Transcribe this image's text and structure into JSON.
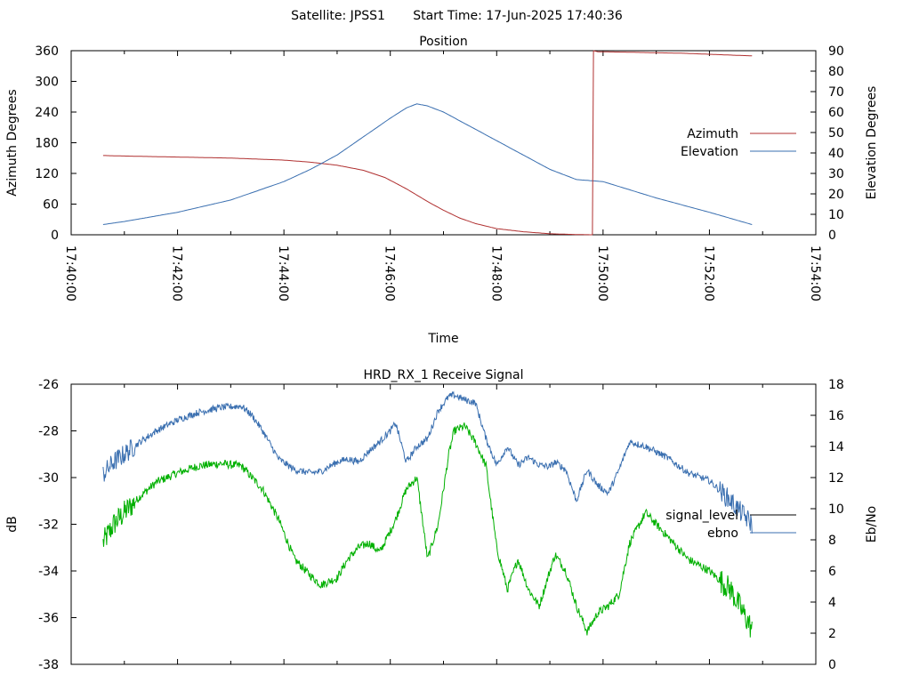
{
  "header": {
    "satellite_text": "Satellite: JPSS1",
    "start_time_text": "Start Time: 17-Jun-2025 17:40:36"
  },
  "chart_data": [
    {
      "type": "line",
      "title": "Position",
      "xlabel": "Time",
      "ylabel_left": "Azimuth Degrees",
      "ylabel_right": "Elevation Degrees",
      "x_ticks": [
        "17:40:00",
        "17:42:00",
        "17:44:00",
        "17:46:00",
        "17:48:00",
        "17:50:00",
        "17:52:00",
        "17:54:00"
      ],
      "x_range_minutes": [
        0,
        14
      ],
      "y_left_ticks": [
        "0",
        "60",
        "120",
        "180",
        "240",
        "300",
        "360"
      ],
      "y_left_range": [
        0,
        360
      ],
      "y_right_ticks": [
        "0",
        "10",
        "20",
        "30",
        "40",
        "50",
        "60",
        "70",
        "80",
        "90"
      ],
      "y_right_range": [
        0,
        90
      ],
      "legend_position": "right",
      "grid": false,
      "colors": {
        "azimuth": "#b03030",
        "elevation": "#3a6fb0"
      },
      "series": [
        {
          "name": "Azimuth",
          "axis": "left",
          "x_minutes": [
            0.6,
            1,
            2,
            3,
            4,
            4.5,
            5,
            5.5,
            5.9,
            6.3,
            6.7,
            7,
            7.3,
            7.6,
            8,
            8.5,
            9,
            9.5,
            9.8
          ],
          "y": [
            155,
            154,
            152,
            150,
            146,
            142,
            136,
            126,
            112,
            90,
            65,
            48,
            33,
            22,
            12,
            6,
            2,
            0.5,
            0
          ]
        },
        {
          "name": "Azimuth",
          "axis": "left",
          "x_minutes": [
            9.82,
            9.9,
            10.5,
            11,
            11.5,
            12,
            12.5,
            12.8
          ],
          "y": [
            360,
            358,
            357,
            356,
            355,
            353,
            351,
            350
          ]
        },
        {
          "name": "Elevation",
          "axis": "right",
          "x_minutes": [
            0.6,
            1,
            2,
            3,
            4,
            4.5,
            5,
            5.5,
            6,
            6.3,
            6.5,
            6.7,
            7,
            7.5,
            8,
            8.5,
            9,
            9.5,
            10,
            10.5,
            11,
            12,
            12.8
          ],
          "y": [
            5,
            6.5,
            11,
            17,
            26,
            32,
            39,
            48,
            57,
            62,
            64,
            63,
            60,
            53,
            46,
            39,
            32,
            27,
            26,
            22,
            18,
            11,
            5
          ]
        }
      ]
    },
    {
      "type": "line",
      "title": "HRD_RX_1 Receive Signal",
      "ylabel_left": "dB",
      "ylabel_right": "Eb/No",
      "x_range_minutes": [
        0,
        14
      ],
      "y_left_ticks": [
        "-26",
        "-28",
        "-30",
        "-32",
        "-34",
        "-36",
        "-38"
      ],
      "y_left_range": [
        -38,
        -26
      ],
      "y_right_ticks": [
        "0",
        "2",
        "4",
        "6",
        "8",
        "10",
        "12",
        "14",
        "16",
        "18"
      ],
      "y_right_range": [
        0,
        18
      ],
      "legend_position": "right",
      "grid": false,
      "colors": {
        "signal_level": "#00b000",
        "ebno": "#3a6fb0",
        "legend_signal_level": "#000000"
      },
      "series": [
        {
          "name": "signal_level",
          "axis": "left",
          "x_minutes": [
            0.6,
            0.8,
            1,
            1.3,
            1.6,
            2,
            2.4,
            2.8,
            3.2,
            3.4,
            3.6,
            3.9,
            4.2,
            4.5,
            4.7,
            5,
            5.2,
            5.4,
            5.6,
            5.8,
            6,
            6.1,
            6.3,
            6.5,
            6.7,
            6.9,
            7.1,
            7.2,
            7.4,
            7.6,
            7.8,
            8,
            8.2,
            8.4,
            8.6,
            8.8,
            9,
            9.1,
            9.3,
            9.5,
            9.7,
            9.9,
            10.1,
            10.3,
            10.5,
            10.8,
            11.2,
            11.6,
            12,
            12.4,
            12.8
          ],
          "y": [
            -32.8,
            -32.0,
            -31.5,
            -30.8,
            -30.2,
            -29.8,
            -29.5,
            -29.4,
            -29.5,
            -30.0,
            -30.5,
            -31.8,
            -33.5,
            -34.2,
            -34.6,
            -34.3,
            -33.5,
            -33.0,
            -32.8,
            -33.2,
            -32.3,
            -31.8,
            -30.5,
            -30.0,
            -33.5,
            -32.0,
            -29.0,
            -28.0,
            -27.8,
            -28.5,
            -29.5,
            -33.0,
            -34.8,
            -33.5,
            -34.8,
            -35.5,
            -34.0,
            -33.3,
            -34.0,
            -35.5,
            -36.6,
            -35.8,
            -35.5,
            -35.0,
            -32.8,
            -31.5,
            -32.5,
            -33.5,
            -34.0,
            -34.8,
            -36.5
          ]
        },
        {
          "name": "ebno",
          "axis": "right",
          "x_minutes": [
            0.6,
            0.8,
            1,
            1.3,
            1.6,
            2,
            2.4,
            2.8,
            3.2,
            3.4,
            3.6,
            3.9,
            4.2,
            4.5,
            4.7,
            5,
            5.2,
            5.4,
            5.6,
            5.8,
            6,
            6.1,
            6.3,
            6.5,
            6.7,
            6.9,
            7.1,
            7.2,
            7.4,
            7.6,
            7.8,
            8,
            8.2,
            8.4,
            8.6,
            8.8,
            9,
            9.1,
            9.3,
            9.5,
            9.7,
            9.9,
            10.1,
            10.3,
            10.5,
            10.8,
            11.2,
            11.6,
            12,
            12.4,
            12.8
          ],
          "y": [
            12.2,
            13.0,
            13.5,
            14.3,
            15.0,
            15.7,
            16.2,
            16.5,
            16.6,
            16.0,
            15.0,
            13.2,
            12.5,
            12.3,
            12.4,
            13.0,
            13.2,
            13.0,
            13.7,
            14.3,
            15.0,
            15.5,
            13.0,
            14.0,
            14.5,
            16.3,
            17.2,
            17.3,
            17.0,
            16.8,
            14.5,
            12.8,
            14.0,
            12.8,
            13.3,
            12.8,
            12.7,
            13.0,
            12.5,
            10.5,
            12.5,
            11.5,
            11.0,
            12.5,
            14.3,
            14.0,
            13.3,
            12.3,
            11.8,
            10.5,
            9.0
          ]
        }
      ]
    }
  ]
}
